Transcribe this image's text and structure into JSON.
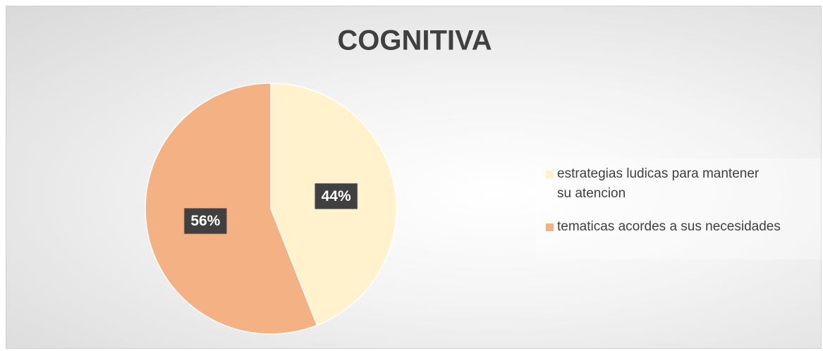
{
  "chart_data": {
    "type": "pie",
    "title": "COGNITIVA",
    "categories": [
      "estrategias ludicas para mantener su atencion",
      "tematicas acordes a sus necesidades"
    ],
    "values": [
      44,
      56
    ],
    "value_labels": [
      "44%",
      "56%"
    ],
    "colors": [
      "#fff2cc",
      "#f4b183"
    ],
    "legend": "right"
  }
}
